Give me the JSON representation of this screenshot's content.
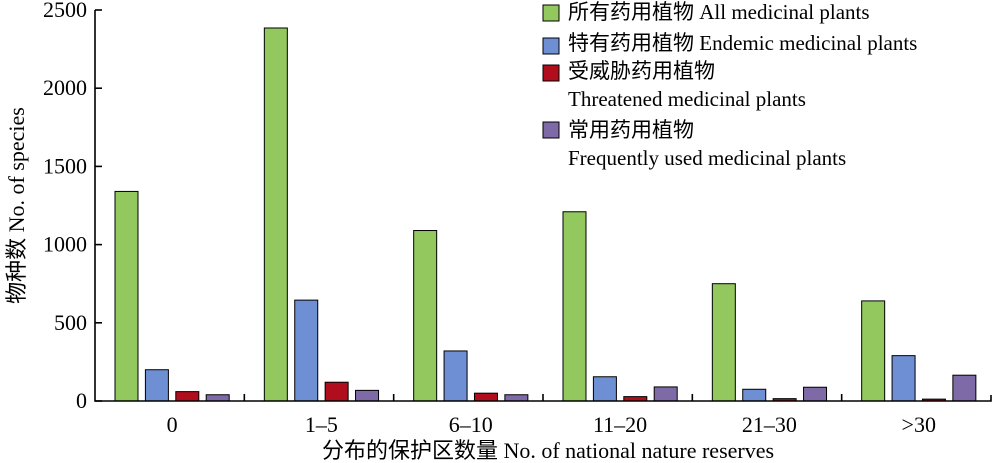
{
  "chart_data": {
    "type": "bar",
    "categories": [
      "0",
      "1–5",
      "6–10",
      "11–20",
      "21–30",
      ">30"
    ],
    "series": [
      {
        "name_zh": "所有药用植物",
        "name_en": "All medicinal plants",
        "color": "#92c85e",
        "values": [
          1340,
          2385,
          1090,
          1210,
          750,
          640
        ]
      },
      {
        "name_zh": "特有药用植物",
        "name_en": "Endemic medicinal plants",
        "color": "#6e8fd3",
        "values": [
          200,
          645,
          320,
          155,
          75,
          290
        ]
      },
      {
        "name_zh": "受威胁药用植物",
        "name_en": "Threatened medicinal plants",
        "color": "#b00e1c",
        "values": [
          60,
          120,
          50,
          28,
          15,
          12
        ]
      },
      {
        "name_zh": "常用药用植物",
        "name_en": "Frequently used medicinal plants",
        "color": "#7e6aa6",
        "values": [
          40,
          68,
          40,
          90,
          88,
          165
        ]
      }
    ],
    "xlabel": "分布的保护区数量 No. of national nature reserves",
    "ylabel": "物种数 No. of species",
    "ylim": [
      0,
      2500
    ],
    "yticks": [
      0,
      500,
      1000,
      1500,
      2000,
      2500
    ],
    "grid": false,
    "legend_position": "top-right"
  }
}
